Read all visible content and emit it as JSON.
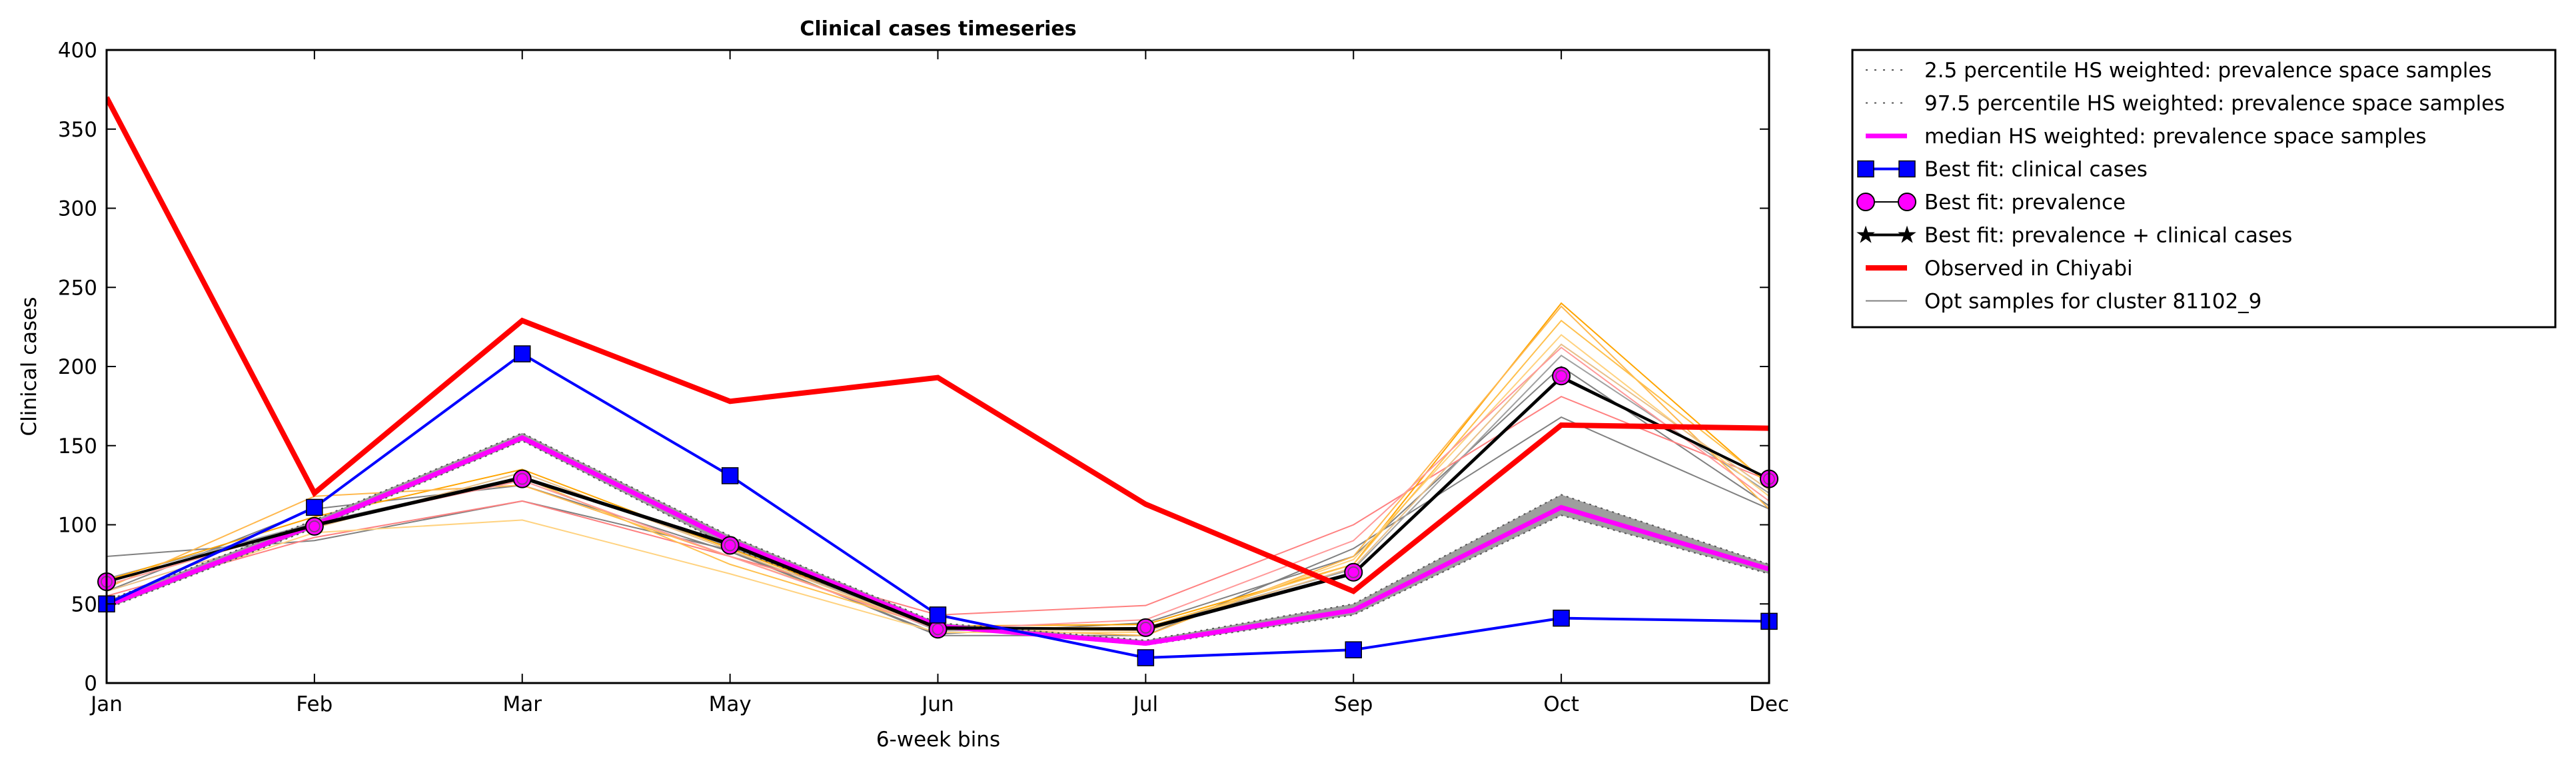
{
  "chart_data": {
    "type": "line",
    "title": "Clinical cases timeseries",
    "xlabel": "6-week bins",
    "ylabel": "Clinical cases",
    "categories": [
      "Jan",
      "Feb",
      "Mar",
      "May",
      "Jun",
      "Jul",
      "Sep",
      "Oct",
      "Dec"
    ],
    "ylim": [
      0,
      400
    ],
    "yticks": [
      0,
      50,
      100,
      150,
      200,
      250,
      300,
      350,
      400
    ],
    "grid": false,
    "legend_position": "outside-top-right",
    "band": {
      "lower_name": "2.5 percentile HS weighted: prevalence space samples",
      "upper_name": "97.5 percentile HS weighted: prevalence space samples",
      "lower": [
        47,
        98,
        153,
        86,
        35,
        24,
        43,
        106,
        69
      ],
      "upper": [
        52,
        103,
        158,
        93,
        38,
        27,
        50,
        119,
        75
      ],
      "color": "#9e9e9e"
    },
    "series": [
      {
        "name": "median HS weighted: prevalence space samples",
        "role": "median",
        "values": [
          49,
          100,
          155,
          90,
          36,
          25,
          46,
          111,
          72
        ],
        "color": "#ff00ff"
      },
      {
        "name": "Best fit: clinical cases",
        "role": "clinical",
        "values": [
          50,
          111,
          208,
          131,
          43,
          16,
          21,
          41,
          39
        ],
        "color": "#0000ff"
      },
      {
        "name": "Best fit: prevalence",
        "role": "prevalence",
        "values": [
          64,
          99,
          129,
          87,
          34,
          35,
          70,
          194,
          129
        ],
        "color": "#ff00ff"
      },
      {
        "name": "Best fit: prevalence + clinical cases",
        "role": "prev_clin",
        "values": [
          64,
          100,
          130,
          88,
          35,
          34,
          69,
          193,
          129
        ],
        "color": "#000000"
      },
      {
        "name": "Observed in Chiyabi",
        "role": "observed",
        "values": [
          370,
          120,
          229,
          178,
          193,
          113,
          58,
          163,
          161
        ],
        "color": "#ff0000"
      },
      {
        "name": "Opt samples for cluster 81102_9",
        "role": "samples_legend",
        "color": "#808080"
      }
    ],
    "opt_samples": [
      {
        "color": "#808080",
        "values": [
          80,
          90,
          115,
          84,
          30,
          30,
          85,
          168,
          110
        ]
      },
      {
        "color": "#808080",
        "values": [
          58,
          110,
          125,
          83,
          31,
          38,
          80,
          200,
          112
        ]
      },
      {
        "color": "#a0a0a0",
        "values": [
          66,
          101,
          130,
          86,
          33,
          35,
          72,
          207,
          120
        ]
      },
      {
        "color": "#ff8080",
        "values": [
          55,
          92,
          115,
          80,
          43,
          49,
          100,
          181,
          128
        ]
      },
      {
        "color": "#ffa500",
        "values": [
          65,
          105,
          135,
          85,
          36,
          37,
          75,
          240,
          125
        ]
      },
      {
        "color": "#ffb84d",
        "values": [
          60,
          118,
          125,
          80,
          35,
          30,
          80,
          238,
          110
        ]
      },
      {
        "color": "#ffd27f",
        "values": [
          52,
          95,
          103,
          69,
          32,
          32,
          78,
          220,
          118
        ]
      },
      {
        "color": "#ffc04d",
        "values": [
          62,
          100,
          130,
          75,
          35,
          35,
          75,
          229,
          126
        ]
      },
      {
        "color": "#e8c08a",
        "values": [
          58,
          98,
          133,
          84,
          34,
          33,
          73,
          214,
          122
        ]
      },
      {
        "color": "#ff9999",
        "values": [
          62,
          100,
          128,
          80,
          34,
          40,
          90,
          212,
          115
        ]
      }
    ]
  }
}
